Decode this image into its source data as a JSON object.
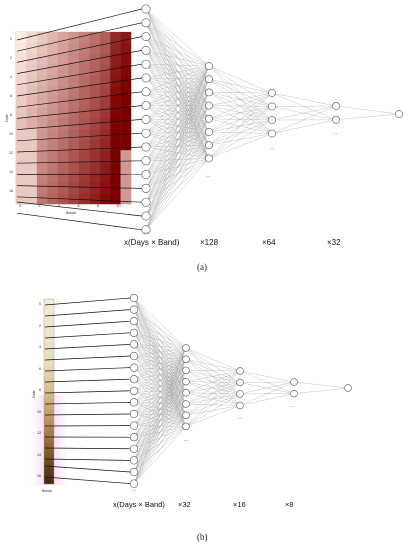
{
  "panels": [
    {
      "id": "a",
      "panel_label": "(a)",
      "input_caption": "x(Days × Band)",
      "layer_labels": [
        "×128",
        "×64",
        "×32"
      ],
      "ellipsis": "...",
      "heatmap_ylabel": "Date",
      "heatmap_xlabel": "Bands",
      "heatmap_yticks": [
        "0",
        "2",
        "4",
        "6",
        "8",
        "10",
        "12",
        "14",
        "16"
      ],
      "heatmap_xticks": [
        "0",
        "2",
        "4",
        "6",
        "8",
        "10"
      ]
    },
    {
      "id": "b",
      "panel_label": "(b)",
      "input_caption": "x(Days × Band)",
      "layer_labels": [
        "×32",
        "×16",
        "×8"
      ],
      "ellipsis": "...",
      "heatmap_ylabel": "Date",
      "heatmap_xlabel": "Bands",
      "heatmap_yticks": [
        "0",
        "2",
        "4",
        "6",
        "8",
        "10",
        "12",
        "14",
        "16"
      ]
    }
  ],
  "colors": {
    "node_stroke": "#555555",
    "edge": "#9a9a9a",
    "input_edge": "#111111",
    "heat_dark": "#7a0000",
    "heat_light": "#fdeee6",
    "brown_dark": "#3d2a0e",
    "pink_glow": "#f3b6ec"
  }
}
